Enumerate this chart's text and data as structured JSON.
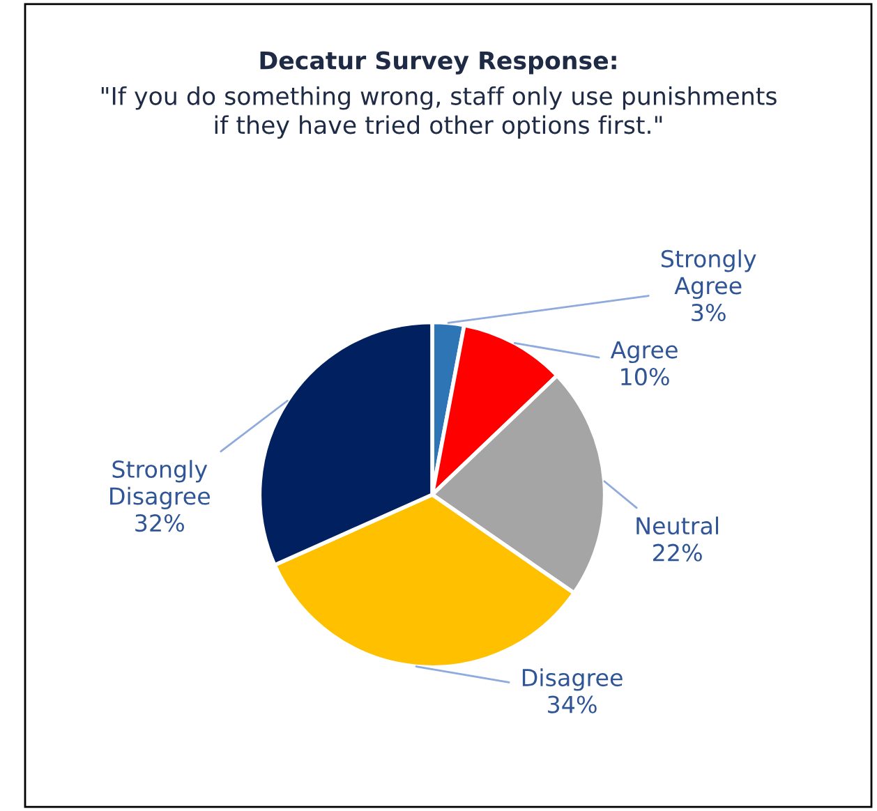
{
  "chart_data": {
    "type": "pie",
    "title": "Decatur Survey Response:",
    "subtitle": "\"If you do something wrong, staff only use punishments if they have tried other options first.\"",
    "categories": [
      "Strongly Agree",
      "Agree",
      "Neutral",
      "Disagree",
      "Strongly Disagree"
    ],
    "values": [
      3,
      10,
      22,
      34,
      32
    ],
    "value_labels": [
      "3%",
      "10%",
      "22%",
      "34%",
      "32%"
    ],
    "colors": [
      "#2e75b6",
      "#ff0000",
      "#a5a5a5",
      "#ffc000",
      "#002060"
    ],
    "legend": false
  }
}
